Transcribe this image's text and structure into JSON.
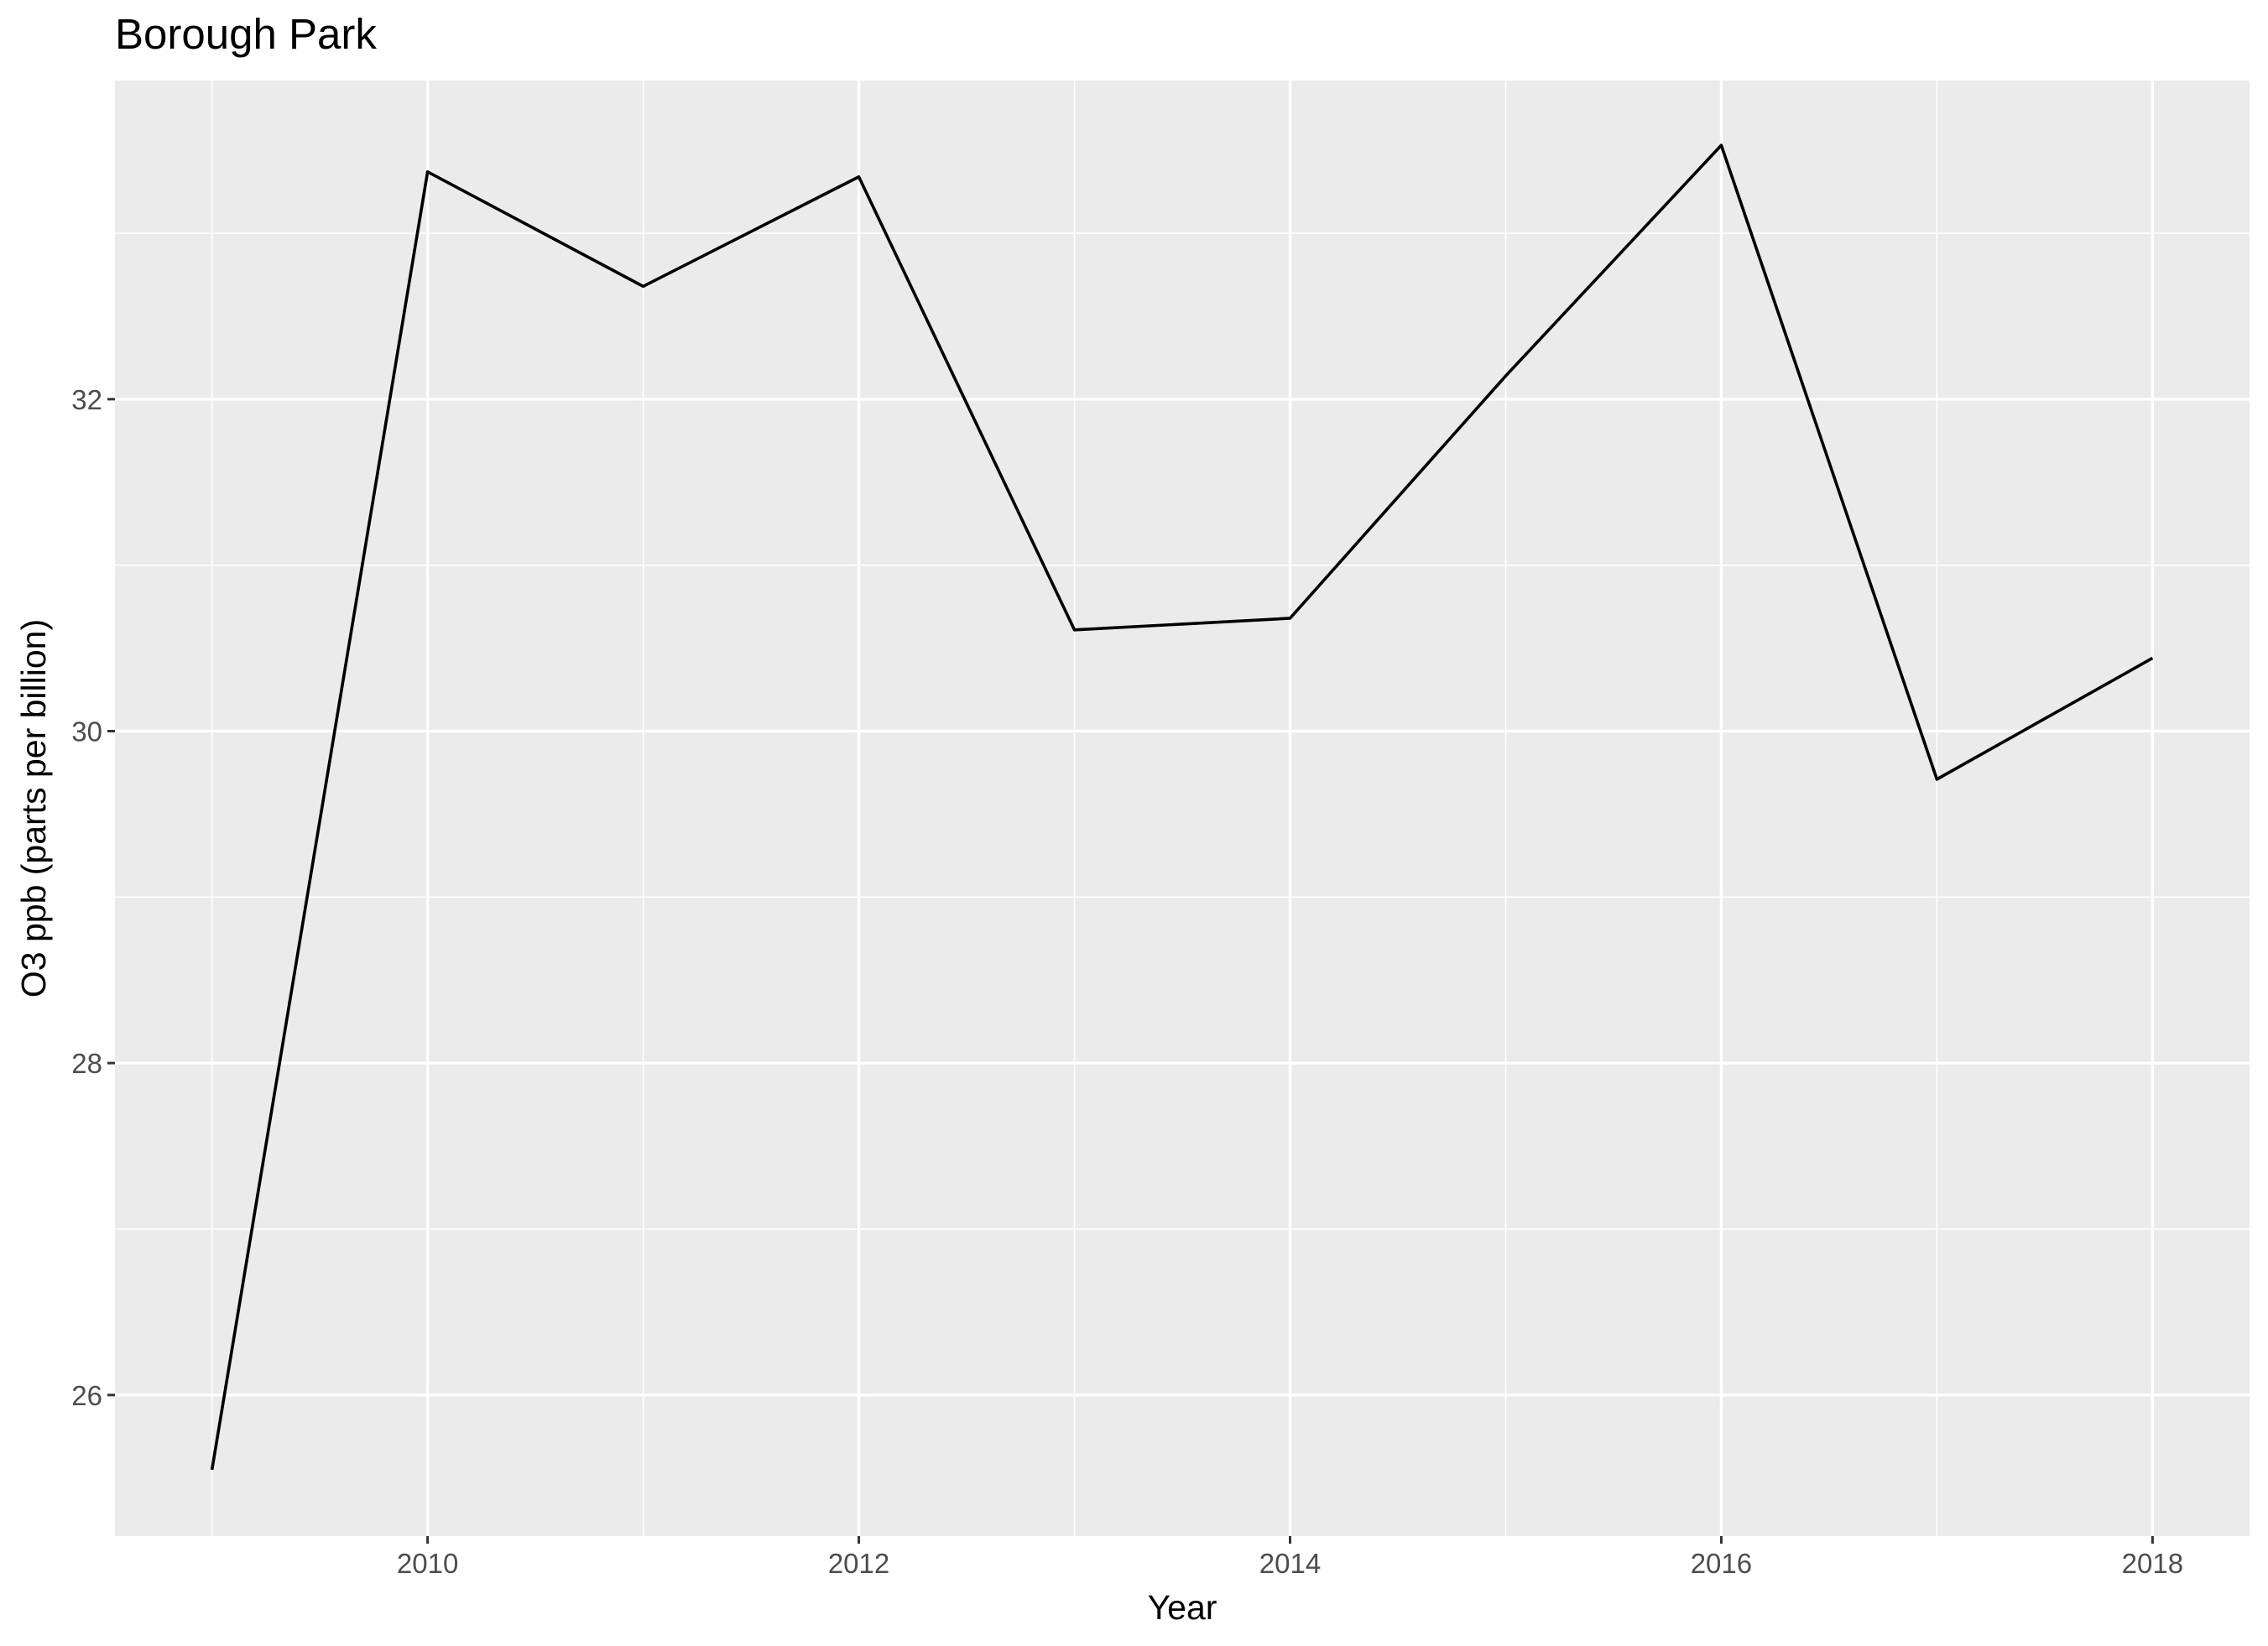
{
  "chart_data": {
    "type": "line",
    "title": "Borough Park",
    "xlabel": "Year",
    "ylabel": "O3 ppb (parts per billion)",
    "x": [
      2009,
      2010,
      2011,
      2012,
      2013,
      2014,
      2015,
      2016,
      2017,
      2018
    ],
    "series": [
      {
        "values": [
          25.55,
          33.37,
          32.68,
          33.34,
          30.61,
          30.68,
          32.14,
          33.53,
          29.71,
          30.44
        ]
      }
    ],
    "xlim": [
      2008.55,
      2018.45
    ],
    "ylim": [
      25.15,
      33.92
    ],
    "x_ticks": [
      2010,
      2012,
      2014,
      2016,
      2018
    ],
    "x_tick_labels": [
      "2010",
      "2012",
      "2014",
      "2016",
      "2018"
    ],
    "x_minor_ticks": [
      2009,
      2011,
      2013,
      2015,
      2017
    ],
    "y_ticks": [
      26,
      28,
      30,
      32
    ],
    "y_tick_labels": [
      "26",
      "28",
      "30",
      "32"
    ],
    "y_minor_ticks": [
      27,
      29,
      31,
      33
    ],
    "grid": true,
    "legend": "none",
    "colors": {
      "panel_background": "#ebebeb",
      "grid": "#ffffff",
      "line": "#000000",
      "tick_text": "#4d4d4d"
    }
  }
}
